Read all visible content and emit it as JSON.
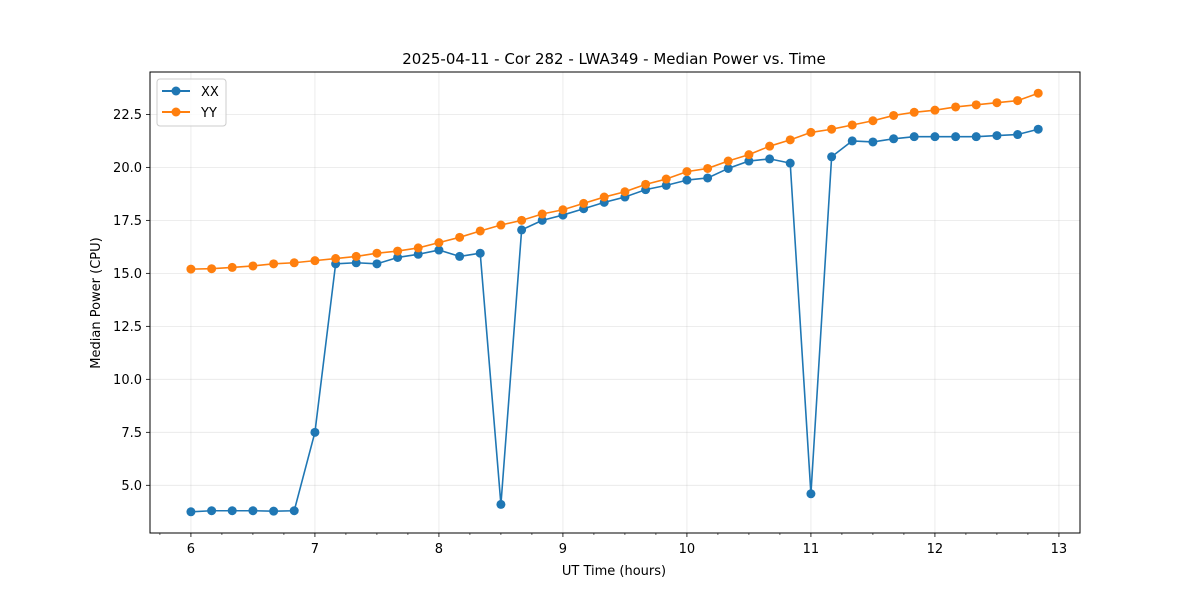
{
  "chart_data": {
    "type": "line",
    "title": "2025-04-11 - Cor 282 - LWA349 - Median Power vs. Time",
    "xlabel": "UT Time (hours)",
    "ylabel": "Median Power (CPU)",
    "xlim": [
      5.67,
      13.17
    ],
    "ylim": [
      2.75,
      24.5
    ],
    "xticks": [
      6,
      7,
      8,
      9,
      10,
      11,
      12,
      13
    ],
    "yticks": [
      5.0,
      7.5,
      10.0,
      12.5,
      15.0,
      17.5,
      20.0,
      22.5
    ],
    "ytick_labels": [
      "5.0",
      "7.5",
      "10.0",
      "12.5",
      "15.0",
      "17.5",
      "20.0",
      "22.5"
    ],
    "grid": true,
    "legend_position": "top-left",
    "x": [
      6.0,
      6.167,
      6.333,
      6.5,
      6.667,
      6.833,
      7.0,
      7.167,
      7.333,
      7.5,
      7.667,
      7.833,
      8.0,
      8.167,
      8.333,
      8.5,
      8.667,
      8.833,
      9.0,
      9.167,
      9.333,
      9.5,
      9.667,
      9.833,
      10.0,
      10.167,
      10.333,
      10.5,
      10.667,
      10.833,
      11.0,
      11.167,
      11.333,
      11.5,
      11.667,
      11.833,
      12.0,
      12.167,
      12.333,
      12.5,
      12.667,
      12.833
    ],
    "series": [
      {
        "name": "XX",
        "color": "#1f77b4",
        "values": [
          3.75,
          3.8,
          3.8,
          3.8,
          3.78,
          3.8,
          7.5,
          15.45,
          15.5,
          15.45,
          15.75,
          15.9,
          16.1,
          15.8,
          15.95,
          4.1,
          17.05,
          17.5,
          17.75,
          18.05,
          18.35,
          18.6,
          18.95,
          19.15,
          19.4,
          19.5,
          19.95,
          20.3,
          20.4,
          20.2,
          4.6,
          20.5,
          21.25,
          21.2,
          21.35,
          21.45,
          21.45,
          21.45,
          21.45,
          21.5,
          21.55,
          21.8
        ]
      },
      {
        "name": "YY",
        "color": "#ff7f0e",
        "values": [
          15.2,
          15.22,
          15.28,
          15.35,
          15.45,
          15.5,
          15.6,
          15.7,
          15.8,
          15.95,
          16.05,
          16.2,
          16.45,
          16.7,
          17.0,
          17.28,
          17.5,
          17.8,
          18.0,
          18.3,
          18.6,
          18.85,
          19.2,
          19.45,
          19.8,
          19.95,
          20.3,
          20.6,
          21.0,
          21.3,
          21.65,
          21.8,
          22.0,
          22.2,
          22.45,
          22.6,
          22.7,
          22.85,
          22.95,
          23.05,
          23.15,
          23.5
        ]
      }
    ]
  }
}
